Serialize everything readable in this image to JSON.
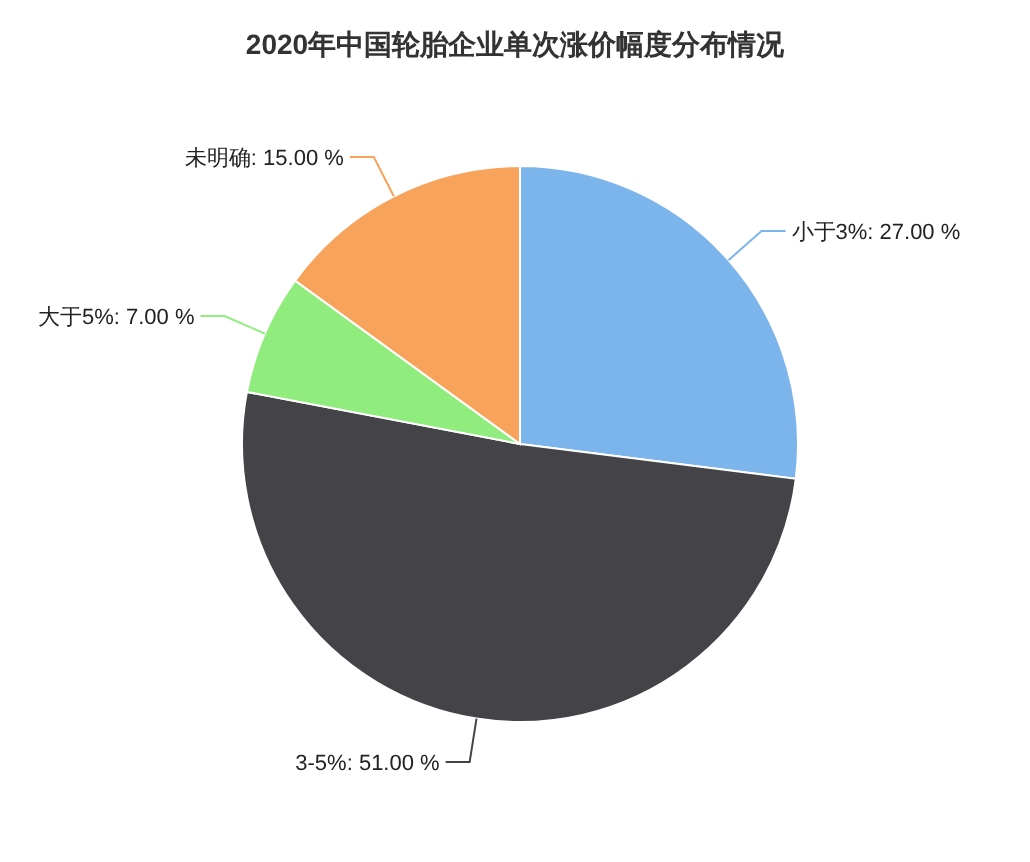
{
  "chart_data": {
    "type": "pie",
    "title": "2020年中国轮胎企业单次涨价幅度分布情况",
    "categories": [
      "小于3%",
      "3-5%",
      "大于5%",
      "未明确"
    ],
    "values": [
      27,
      51,
      7,
      15
    ],
    "colors": [
      "#7cb5ec",
      "#434348",
      "#90ed7d",
      "#f7a35c"
    ],
    "value_labels": [
      "27.00 %",
      "51.00 %",
      "7.00 %",
      "15.00 %"
    ]
  }
}
